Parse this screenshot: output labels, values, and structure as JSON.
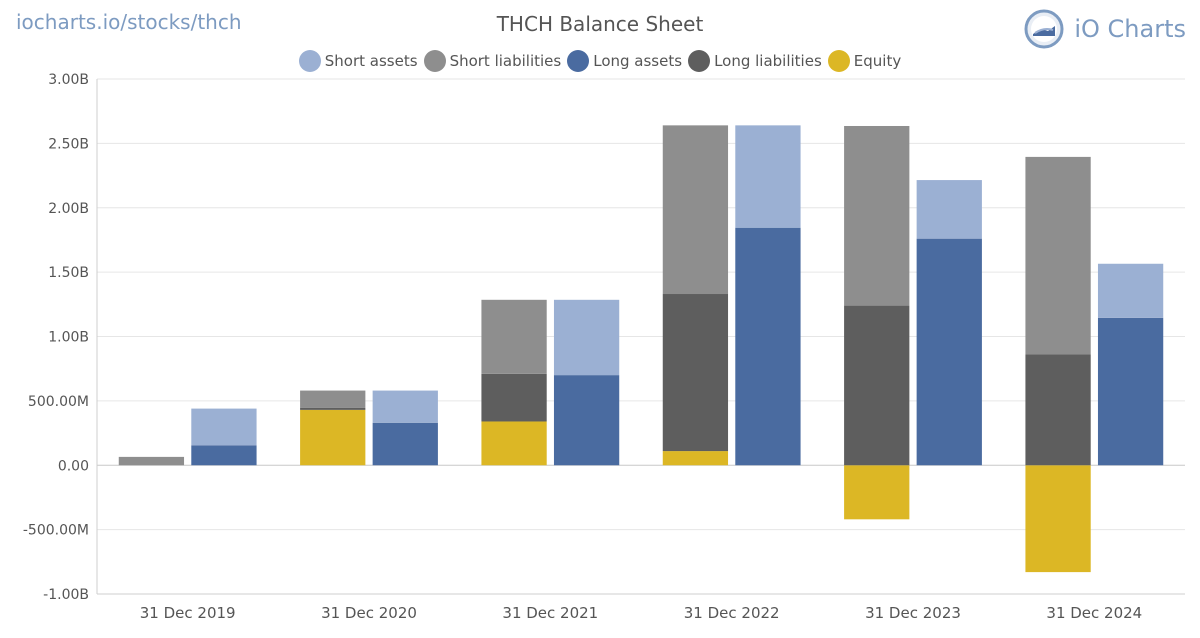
{
  "header": {
    "url": "iocharts.io/stocks/thch",
    "brand": "iO Charts"
  },
  "colors": {
    "short_assets": "#9bb0d3",
    "short_liabilities": "#8e8e8e",
    "long_assets": "#4a6ba0",
    "long_liabilities": "#5e5e5e",
    "equity": "#dcb725"
  },
  "legend": [
    {
      "label": "Short assets",
      "color": "#9bb0d3"
    },
    {
      "label": "Short liabilities",
      "color": "#8e8e8e"
    },
    {
      "label": "Long assets",
      "color": "#4a6ba0"
    },
    {
      "label": "Long liabilities",
      "color": "#5e5e5e"
    },
    {
      "label": "Equity",
      "color": "#dcb725"
    }
  ],
  "chart_data": {
    "type": "bar",
    "title": "THCH Balance Sheet",
    "xlabel": "",
    "ylabel": "",
    "ylim": [
      -1000000000,
      3000000000
    ],
    "yticks": [
      3000000000,
      2500000000,
      2000000000,
      1500000000,
      1000000000,
      500000000,
      0,
      -500000000,
      -1000000000
    ],
    "ytick_labels": [
      "3.00B",
      "2.50B",
      "2.00B",
      "1.50B",
      "1.00B",
      "500.00M",
      "0.00",
      "-500.00M",
      "-1.00B"
    ],
    "categories": [
      "31 Dec 2019",
      "31 Dec 2020",
      "31 Dec 2021",
      "31 Dec 2022",
      "31 Dec 2023",
      "31 Dec 2024"
    ],
    "stacks": {
      "liabilities_equity": [
        "Equity",
        "Long liabilities",
        "Short liabilities"
      ],
      "assets": [
        "Long assets",
        "Short assets"
      ]
    },
    "series": [
      {
        "name": "Equity",
        "stack": "liabilities_equity",
        "values": [
          0,
          430000000,
          340000000,
          110000000,
          -420000000,
          -830000000
        ]
      },
      {
        "name": "Long liabilities",
        "stack": "liabilities_equity",
        "values": [
          0,
          15000000,
          370000000,
          1220000000,
          1240000000,
          860000000
        ]
      },
      {
        "name": "Short liabilities",
        "stack": "liabilities_equity",
        "values": [
          65000000,
          135000000,
          575000000,
          1310000000,
          1395000000,
          1535000000
        ]
      },
      {
        "name": "Long assets",
        "stack": "assets",
        "values": [
          155000000,
          330000000,
          700000000,
          1845000000,
          1760000000,
          1145000000
        ]
      },
      {
        "name": "Short assets",
        "stack": "assets",
        "values": [
          285000000,
          250000000,
          585000000,
          795000000,
          455000000,
          420000000
        ]
      }
    ]
  }
}
